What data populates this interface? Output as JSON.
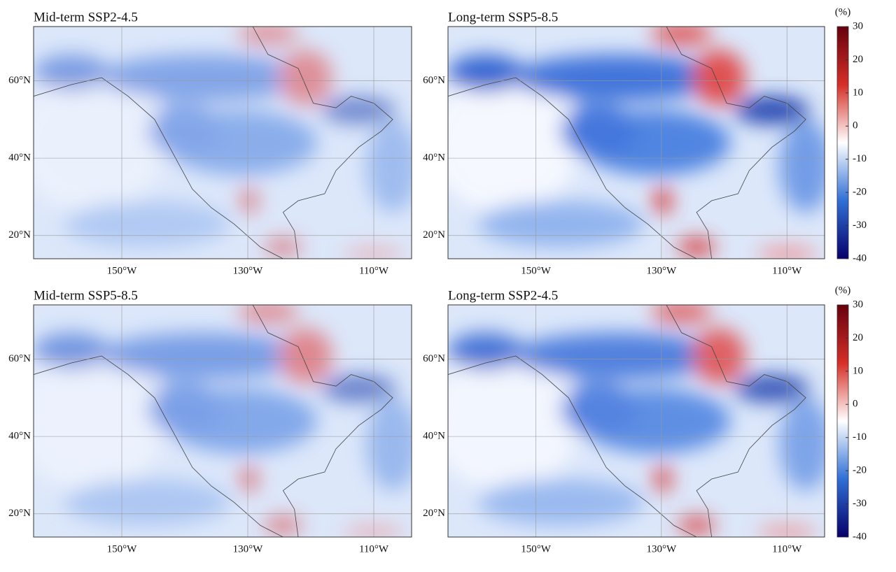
{
  "panels": [
    {
      "title": "Mid-term SSP2-4.5",
      "xlim": [
        -164,
        -104
      ],
      "ylim": [
        14,
        74
      ],
      "xticks": [
        {
          "value": -150,
          "label": "150°W"
        },
        {
          "value": -130,
          "label": "130°W"
        },
        {
          "value": -110,
          "label": "110°W"
        }
      ],
      "yticks": [
        {
          "value": 60,
          "label": "60°N"
        },
        {
          "value": 40,
          "label": "40°N"
        },
        {
          "value": 20,
          "label": "20°N"
        }
      ]
    },
    {
      "title": "Long-term SSP5-8.5",
      "xlim": [
        -164,
        -104
      ],
      "ylim": [
        14,
        74
      ],
      "xticks": [
        {
          "value": -150,
          "label": "150°W"
        },
        {
          "value": -130,
          "label": "130°W"
        },
        {
          "value": -110,
          "label": "110°W"
        }
      ],
      "yticks": [
        {
          "value": 60,
          "label": "60°N"
        },
        {
          "value": 40,
          "label": "40°N"
        },
        {
          "value": 20,
          "label": "20°N"
        }
      ]
    },
    {
      "title": "Mid-term SSP5-8.5",
      "xlim": [
        -164,
        -104
      ],
      "ylim": [
        14,
        74
      ],
      "xticks": [
        {
          "value": -150,
          "label": "150°W"
        },
        {
          "value": -130,
          "label": "130°W"
        },
        {
          "value": -110,
          "label": "110°W"
        }
      ],
      "yticks": [
        {
          "value": 60,
          "label": "60°N"
        },
        {
          "value": 40,
          "label": "40°N"
        },
        {
          "value": 20,
          "label": "20°N"
        }
      ]
    },
    {
      "title": "Long-term SSP2-4.5",
      "xlim": [
        -164,
        -104
      ],
      "ylim": [
        14,
        74
      ],
      "xticks": [
        {
          "value": -150,
          "label": "150°W"
        },
        {
          "value": -130,
          "label": "130°W"
        },
        {
          "value": -110,
          "label": "110°W"
        }
      ],
      "yticks": [
        {
          "value": 60,
          "label": "60°N"
        },
        {
          "value": 40,
          "label": "40°N"
        },
        {
          "value": 20,
          "label": "20°N"
        }
      ]
    }
  ],
  "colorbars": [
    {
      "unit": "(%)",
      "ylim": [
        -40,
        30
      ],
      "ticks": [
        30,
        20,
        10,
        0,
        -10,
        -20,
        -30,
        -40
      ],
      "colormap": [
        "#67000d",
        "#d62f27",
        "#ffffff",
        "#2f6fd6",
        "#08006b"
      ]
    },
    {
      "unit": "(%)",
      "ylim": [
        -40,
        30
      ],
      "ticks": [
        30,
        20,
        10,
        0,
        -10,
        -20,
        -30,
        -40
      ],
      "colormap": [
        "#67000d",
        "#d62f27",
        "#ffffff",
        "#2f6fd6",
        "#08006b"
      ]
    }
  ]
}
